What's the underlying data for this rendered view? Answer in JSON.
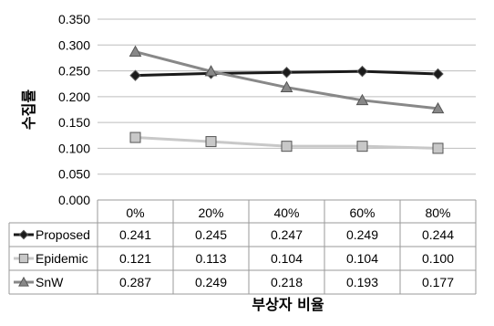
{
  "chart_data": {
    "type": "line",
    "categories": [
      "0%",
      "20%",
      "40%",
      "60%",
      "80%"
    ],
    "series": [
      {
        "name": "Proposed",
        "values": [
          0.241,
          0.245,
          0.247,
          0.249,
          0.244
        ],
        "color": "#1a1a1a",
        "marker": "diamond"
      },
      {
        "name": "Epidemic",
        "values": [
          0.121,
          0.113,
          0.104,
          0.104,
          0.1
        ],
        "color": "#c8c8c8",
        "marker": "square"
      },
      {
        "name": "SnW",
        "values": [
          0.287,
          0.249,
          0.218,
          0.193,
          0.177
        ],
        "color": "#888888",
        "marker": "triangle"
      }
    ],
    "value_labels": [
      [
        "0.241",
        "0.245",
        "0.247",
        "0.249",
        "0.244"
      ],
      [
        "0.121",
        "0.113",
        "0.104",
        "0.104",
        "0.100"
      ],
      [
        "0.287",
        "0.249",
        "0.218",
        "0.193",
        "0.177"
      ]
    ],
    "y_ticks": [
      "0.000",
      "0.050",
      "0.100",
      "0.150",
      "0.200",
      "0.250",
      "0.300",
      "0.350"
    ],
    "ylim": [
      0,
      0.35
    ],
    "ylabel": "수집률",
    "xlabel": "부상자 비율",
    "grid": true,
    "legend": "data-table"
  }
}
